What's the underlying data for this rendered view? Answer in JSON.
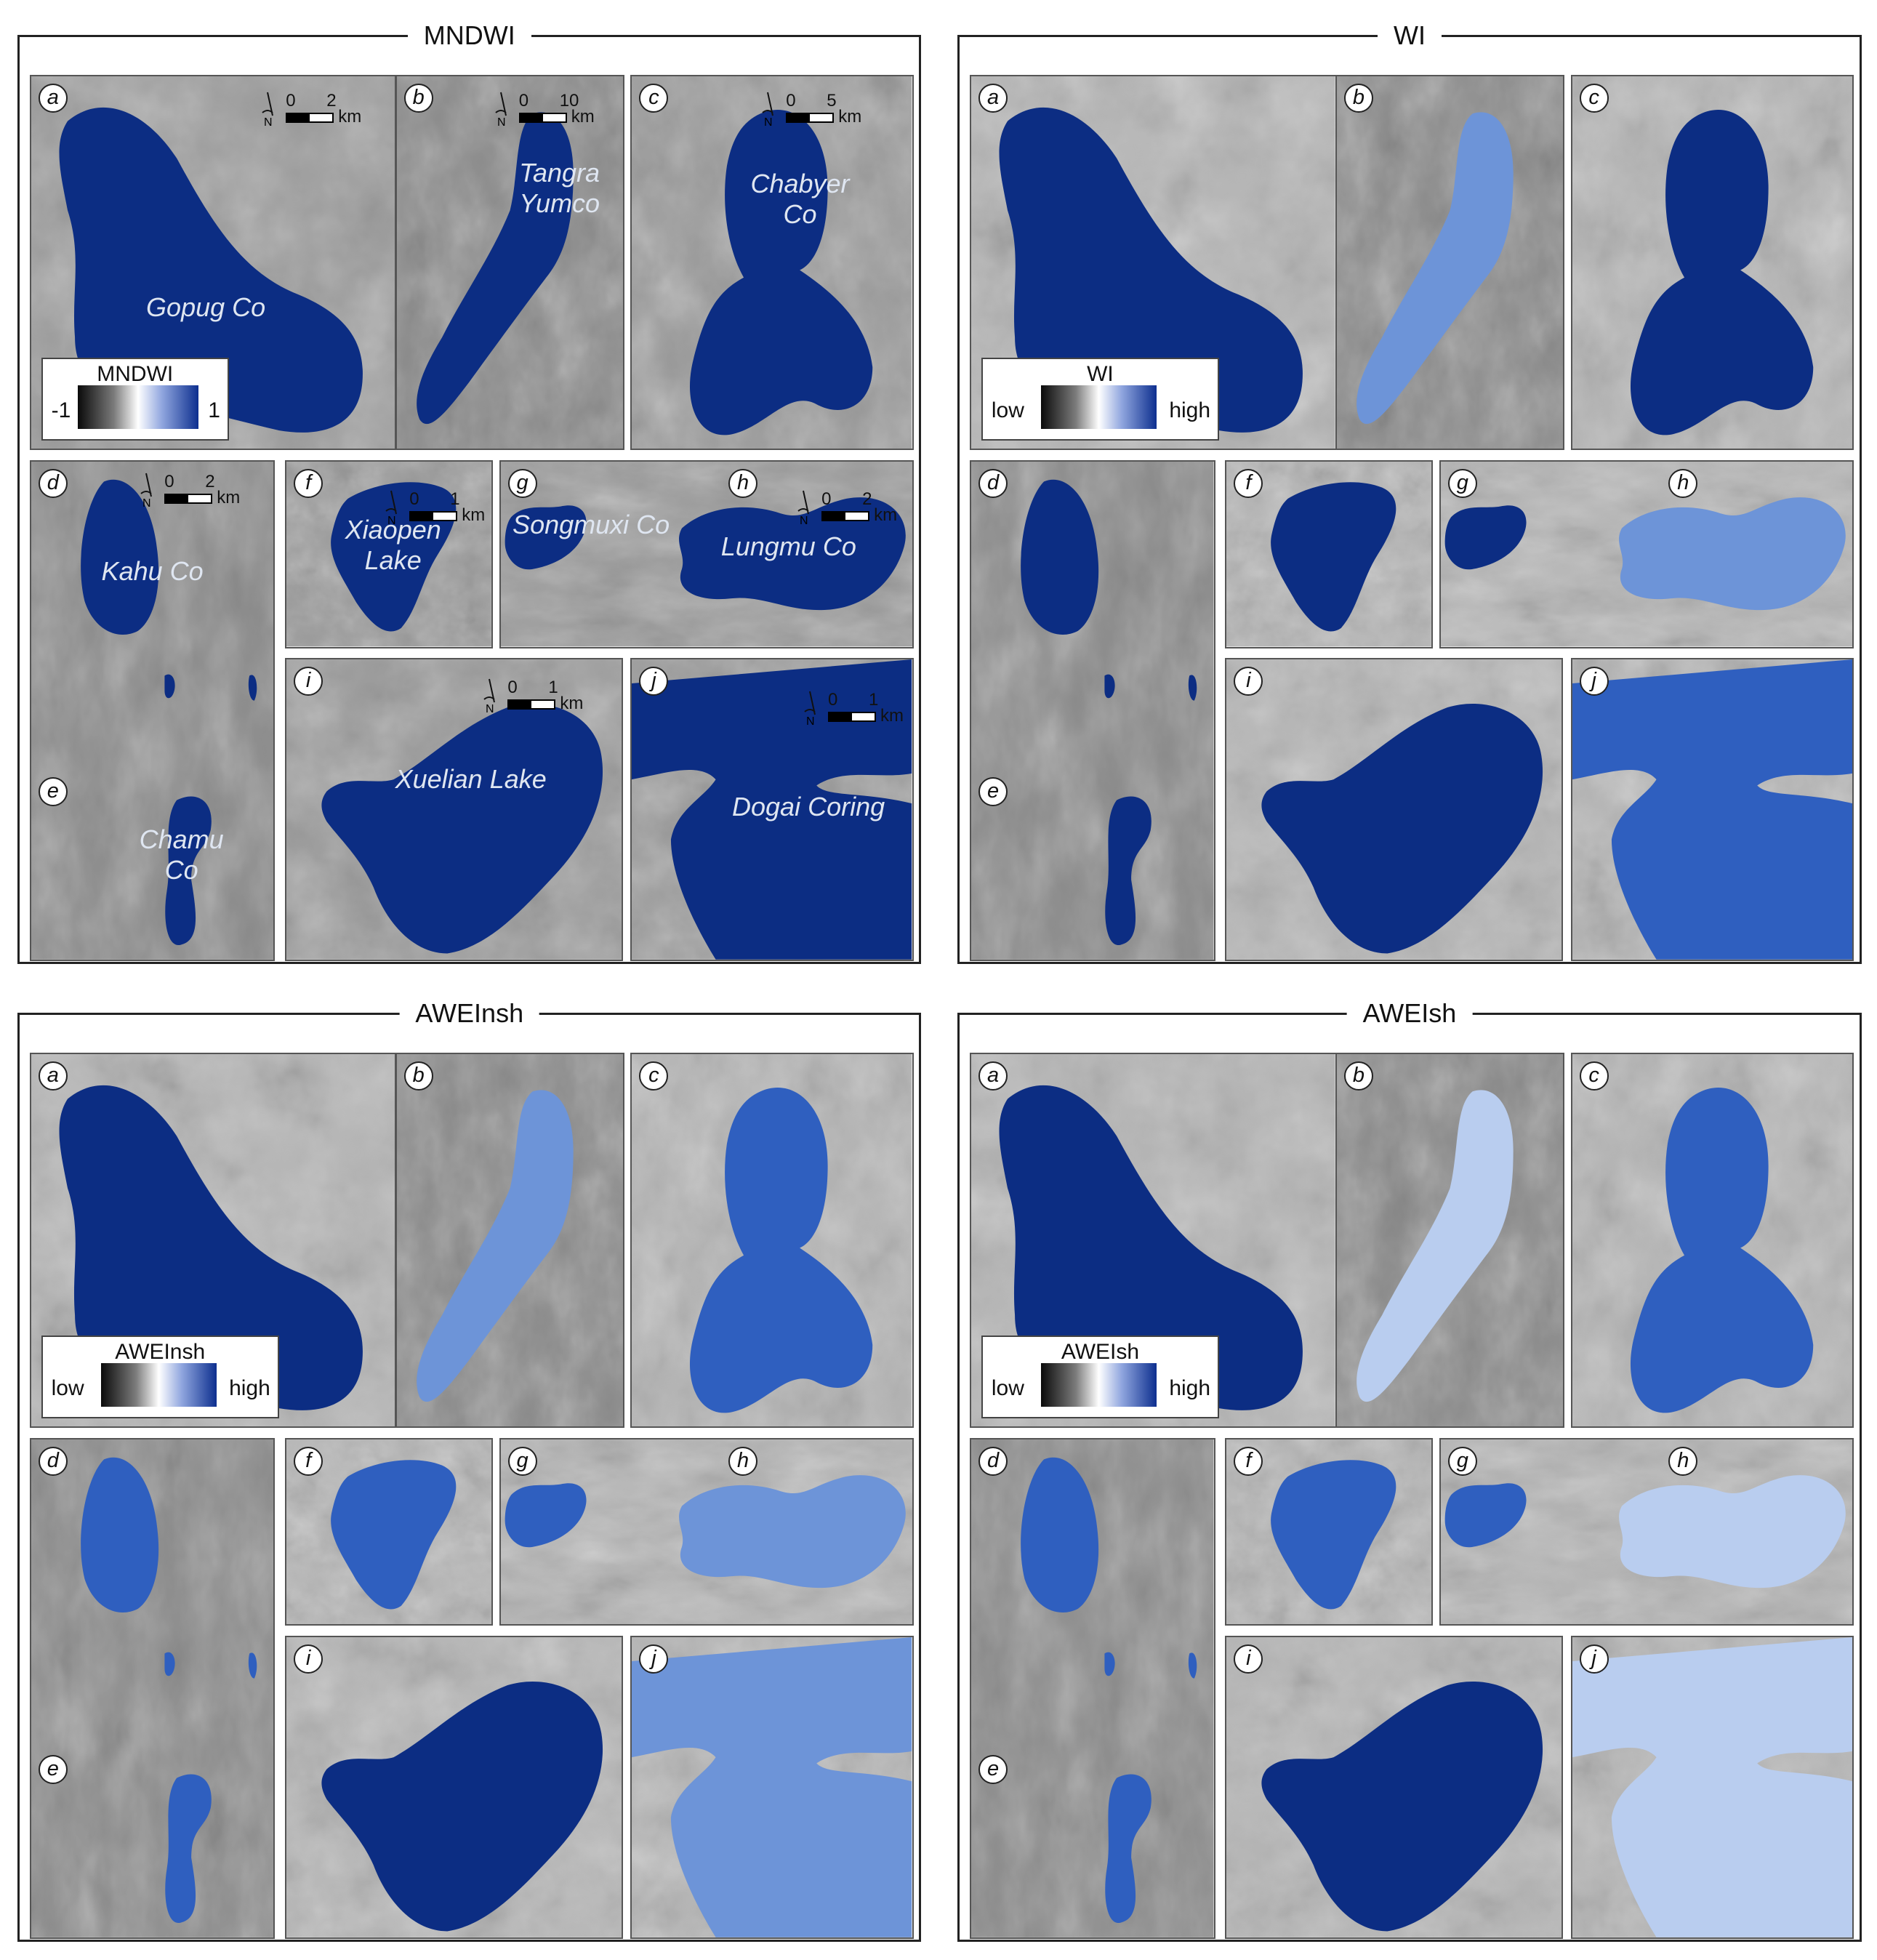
{
  "quadrants": [
    {
      "id": "mndwi",
      "title": "MNDWI",
      "legend": {
        "title": "MNDWI",
        "min": "-1",
        "max": "1"
      },
      "lake_names": true,
      "scales": true
    },
    {
      "id": "wi",
      "title": "WI",
      "legend": {
        "title": "WI",
        "min": "low",
        "max": "high"
      },
      "lake_names": false,
      "scales": false
    },
    {
      "id": "aweinsh",
      "title": "AWEInsh",
      "legend": {
        "title": "AWEInsh",
        "min": "low",
        "max": "high"
      },
      "lake_names": false,
      "scales": false
    },
    {
      "id": "aweish",
      "title": "AWEIsh",
      "legend": {
        "title": "AWEIsh",
        "min": "low",
        "max": "high"
      },
      "lake_names": false,
      "scales": false
    }
  ],
  "panel_labels": {
    "a": "a",
    "b": "b",
    "c": "c",
    "d": "d",
    "e": "e",
    "f": "f",
    "g": "g",
    "h": "h",
    "i": "i",
    "j": "j"
  },
  "lake_names": {
    "a": "Gopug Co",
    "b": [
      "Tangra",
      "Yumco"
    ],
    "c": [
      "Chabyer",
      "Co"
    ],
    "d": "Kahu Co",
    "e": [
      "Chamu",
      "Co"
    ],
    "f": [
      "Xiaopen",
      "Lake"
    ],
    "g": "Songmuxi Co",
    "h": "Lungmu Co",
    "i": "Xuelian Lake",
    "j": "Dogai Coring"
  },
  "scale_bars": {
    "a": {
      "min": "0",
      "max": "2",
      "unit": "km"
    },
    "b": {
      "min": "0",
      "max": "10",
      "unit": "km"
    },
    "c": {
      "min": "0",
      "max": "5",
      "unit": "km"
    },
    "d": {
      "min": "0",
      "max": "2",
      "unit": "km"
    },
    "f": {
      "min": "0",
      "max": "1",
      "unit": "km"
    },
    "h": {
      "min": "0",
      "max": "2",
      "unit": "km"
    },
    "i": {
      "min": "0",
      "max": "1",
      "unit": "km"
    },
    "j": {
      "min": "0",
      "max": "1",
      "unit": "km"
    }
  },
  "north_label": "N",
  "colors": {
    "water_deep": "#0c2d83",
    "water_mid": "#2f5fbf",
    "water_light": "#6d94d8",
    "water_pale": "#b9cdef",
    "ramp": [
      "#0a0a0a",
      "#7b7b7b",
      "#ffffff",
      "#8fa5de",
      "#0d2f8f"
    ]
  },
  "water_shade": {
    "mndwi": {
      "a": "deep",
      "b": "deep",
      "c": "deep",
      "d": "deep",
      "f": "deep",
      "g": "deep",
      "h": "deep",
      "i": "deep",
      "j": "deep"
    },
    "wi": {
      "a": "deep",
      "b": "light",
      "c": "deep",
      "d": "deep",
      "f": "deep",
      "g": "deep",
      "h": "light",
      "i": "deep",
      "j": "mid"
    },
    "aweinsh": {
      "a": "deep",
      "b": "light",
      "c": "mid",
      "d": "mid",
      "f": "mid",
      "g": "mid",
      "h": "light",
      "i": "deep",
      "j": "light"
    },
    "aweish": {
      "a": "deep",
      "b": "pale",
      "c": "mid",
      "d": "mid",
      "f": "mid",
      "g": "mid",
      "h": "pale",
      "i": "deep",
      "j": "pale"
    }
  }
}
